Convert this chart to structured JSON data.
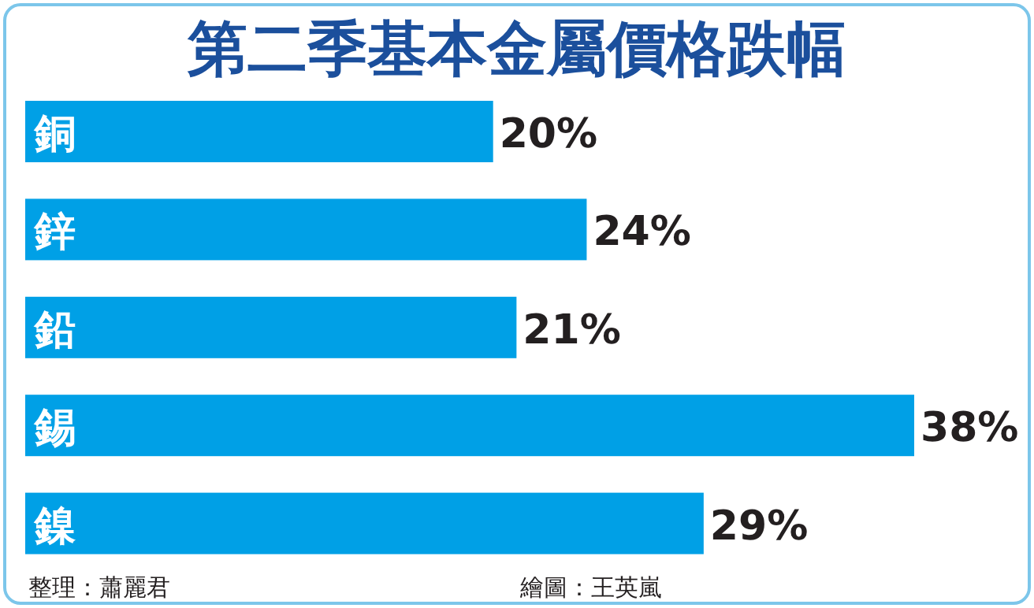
{
  "chart_data": {
    "type": "bar",
    "orientation": "horizontal",
    "title": "第二季基本金屬價格跌幅",
    "categories": [
      "銅",
      "鋅",
      "鉛",
      "錫",
      "鎳"
    ],
    "values": [
      20,
      24,
      21,
      38,
      29
    ],
    "value_labels": [
      "20%",
      "24%",
      "21%",
      "38%",
      "29%"
    ],
    "color": "#00a0e6",
    "annotations": [
      "整理：蕭麗君",
      "繪圖：王英嵐"
    ]
  }
}
